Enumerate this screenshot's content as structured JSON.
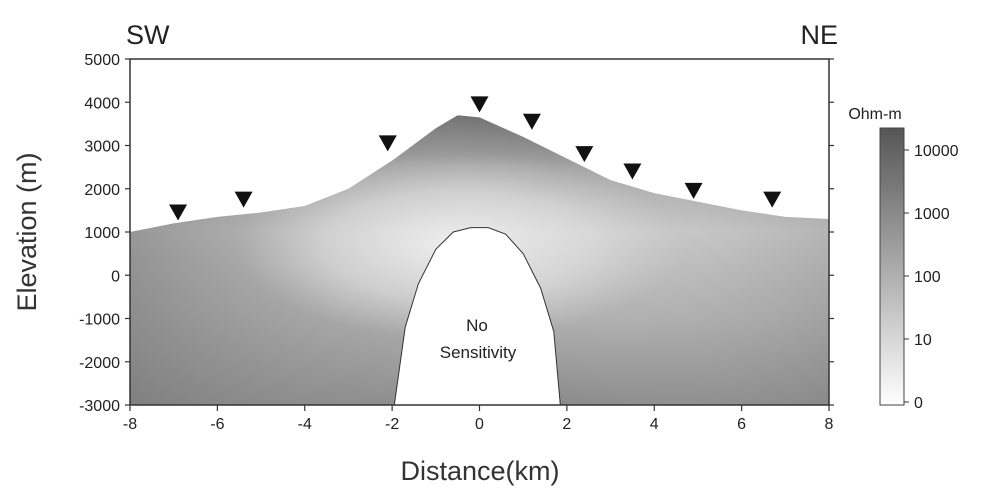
{
  "chart_data": {
    "type": "heatmap",
    "xlabel": "Distance(km)",
    "ylabel": "Elevation (m)",
    "xlim": [
      -8,
      8
    ],
    "ylim": [
      -3000,
      5000
    ],
    "x_ticks": [
      "-8",
      "-6",
      "-4",
      "-2",
      "0",
      "2",
      "4",
      "6",
      "8"
    ],
    "y_ticks": [
      "5000",
      "4000",
      "3000",
      "2000",
      "1000",
      "0",
      "-1000",
      "-2000",
      "-3000"
    ],
    "corner_labels": {
      "left": "SW",
      "right": "NE"
    },
    "annotation_lines": [
      "No",
      "Sensitivity"
    ],
    "colorbar": {
      "title": "Ohm-m",
      "labels": [
        "10000",
        "1000",
        "100",
        "10",
        "0"
      ],
      "color_high": "#555555",
      "color_low": "#ffffff"
    },
    "topography": {
      "x": [
        -8,
        -7,
        -6,
        -5,
        -4,
        -3,
        -2,
        -1,
        -0.5,
        0,
        1,
        2,
        3,
        4,
        5,
        6,
        7,
        8
      ],
      "elevation": [
        1000,
        1200,
        1350,
        1450,
        1600,
        2000,
        2650,
        3400,
        3700,
        3650,
        3200,
        2700,
        2200,
        1900,
        1700,
        1500,
        1350,
        1300
      ]
    },
    "stations": {
      "x": [
        -6.9,
        -5.4,
        -2.1,
        0.0,
        1.2,
        2.4,
        3.5,
        4.9,
        6.7
      ],
      "elevation": [
        1450,
        1750,
        3050,
        3950,
        3550,
        2800,
        2400,
        1950,
        1750
      ]
    },
    "no_sensitivity_region": {
      "x": [
        -1.95,
        -1.7,
        -1.4,
        -1.0,
        -0.6,
        -0.2,
        0.2,
        0.6,
        1.0,
        1.4,
        1.7,
        1.85
      ],
      "elevation": [
        -3000,
        -1200,
        -200,
        600,
        1000,
        1100,
        1100,
        950,
        500,
        -300,
        -1300,
        -3000
      ]
    }
  }
}
